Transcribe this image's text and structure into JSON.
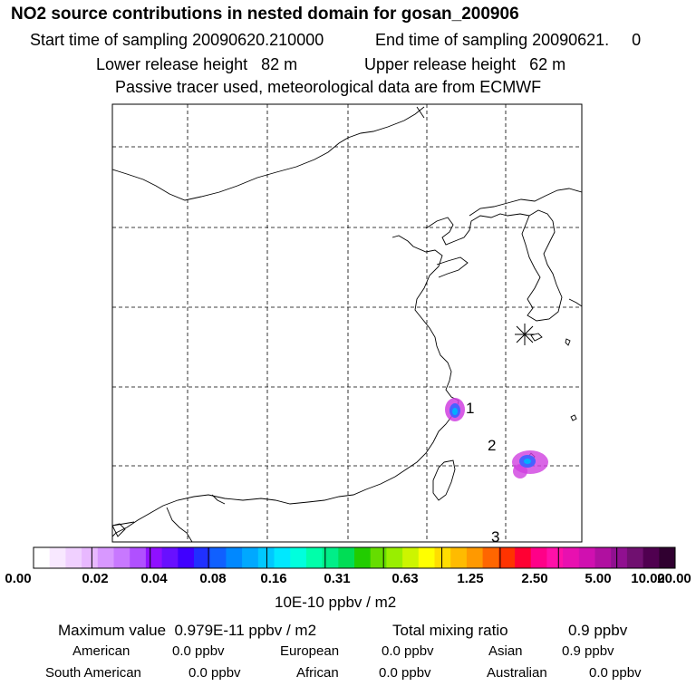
{
  "header": {
    "title": "NO2 source contributions in nested domain for gosan_200906",
    "start_label": "Start time of sampling 20090620.210000",
    "end_label": "End time of sampling 20090621.     0",
    "lower_label": "Lower release height   82 m",
    "upper_label": "Upper release height   62 m",
    "passive_label": "Passive tracer used, meteorological data are from ECMWF"
  },
  "map": {
    "receptor_icon": "asterisk-receptor",
    "hotspot_labels": [
      "1",
      "2",
      "3"
    ],
    "colors": {
      "hotspot_outer": "#d040e0",
      "hotspot_mid": "#4a60ff",
      "hotspot_core": "#00b0ff"
    }
  },
  "colorbar": {
    "tick_labels": [
      "0.00",
      "0.02",
      "0.04",
      "0.08",
      "0.16",
      "0.31",
      "0.63",
      "1.25",
      "2.50",
      "5.00",
      "10.00",
      "20.00"
    ],
    "colors": [
      "#ffffff",
      "#f8e8ff",
      "#f0d0ff",
      "#e8b8ff",
      "#d898ff",
      "#c878ff",
      "#b050ff",
      "#9010ff",
      "#6810ff",
      "#4000ff",
      "#2030ff",
      "#1060ff",
      "#0088ff",
      "#00a8ff",
      "#00c8ff",
      "#00e8ff",
      "#00ffdd",
      "#00ffaa",
      "#00ee88",
      "#00dd55",
      "#22cc00",
      "#66dd00",
      "#99ee00",
      "#ccf500",
      "#ffff00",
      "#ffdd00",
      "#ffbb00",
      "#ff9900",
      "#ff6600",
      "#ff3300",
      "#ff0033",
      "#ff0088",
      "#ff10a8",
      "#e810b0",
      "#d010b0",
      "#b010a0",
      "#901090",
      "#701070",
      "#500050",
      "#300030"
    ],
    "unit_label": "10E-10 ppbv / m2"
  },
  "summary": {
    "max_label": "Maximum value  0.979E-11 ppbv / m2",
    "total_label": "Total mixing ratio",
    "total_value": "0.9 ppbv",
    "sources": [
      {
        "name": "American",
        "value": "0.0 ppbv"
      },
      {
        "name": "European",
        "value": "0.0 ppbv"
      },
      {
        "name": "Asian",
        "value": "0.9 ppbv"
      },
      {
        "name": "South American",
        "value": "0.0 ppbv"
      },
      {
        "name": "African",
        "value": "0.0 ppbv"
      },
      {
        "name": "Australian",
        "value": "0.0 ppbv"
      }
    ]
  }
}
